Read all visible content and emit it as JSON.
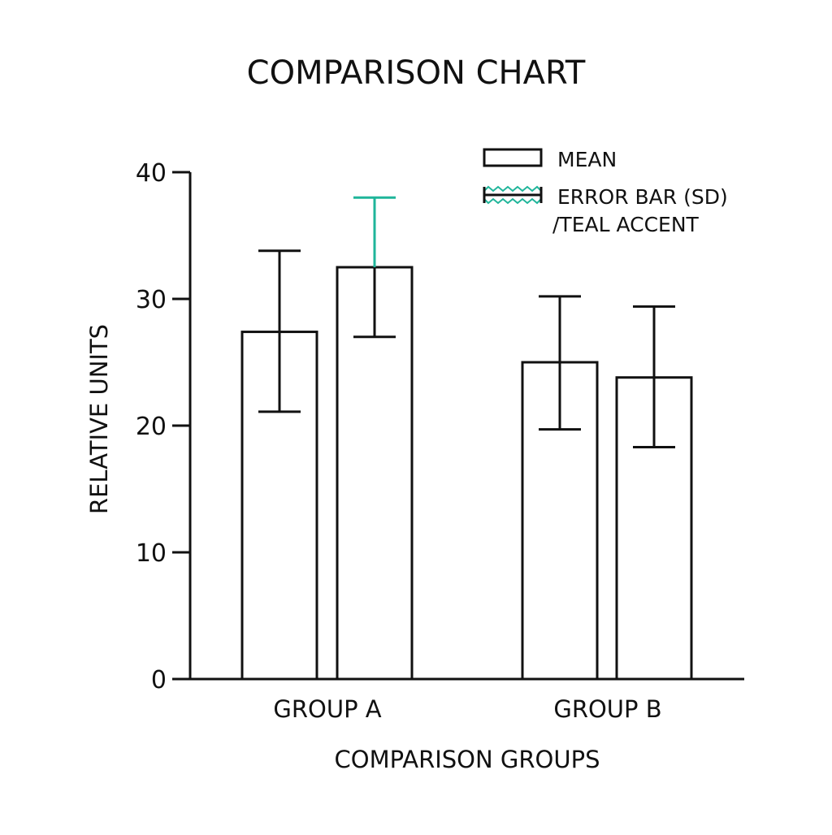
{
  "chart_data": {
    "type": "bar",
    "title": "COMPARISON CHART",
    "xlabel": "COMPARISON GROUPS",
    "ylabel": "RELATIVE UNITS",
    "ylim": [
      0,
      40
    ],
    "yticks": [
      "0",
      "10",
      "20",
      "30",
      "40"
    ],
    "groups": [
      {
        "label": "GROUP A",
        "bars": [
          {
            "mean": 27.4,
            "sd_low": 21.1,
            "sd_high": 33.8,
            "accent": false
          },
          {
            "mean": 32.5,
            "sd_low": 27.0,
            "sd_high": 38.0,
            "accent": true
          }
        ]
      },
      {
        "label": "GROUP B",
        "bars": [
          {
            "mean": 25.0,
            "sd_low": 19.7,
            "sd_high": 30.2,
            "accent": false
          },
          {
            "mean": 23.8,
            "sd_low": 18.3,
            "sd_high": 29.4,
            "accent": false
          }
        ]
      }
    ],
    "legend": {
      "placement": "top-right",
      "items": [
        {
          "label": "MEAN",
          "swatch": "open-rectangle"
        },
        {
          "label": "ERROR BAR (SD)",
          "label_line2": "/TEAL ACCENT",
          "swatch": "error-bar-teal-zigzag"
        }
      ]
    },
    "grid": false,
    "colors": {
      "ink": "#111111",
      "accent": "#1fb59a",
      "fill": "#ffffff"
    }
  }
}
